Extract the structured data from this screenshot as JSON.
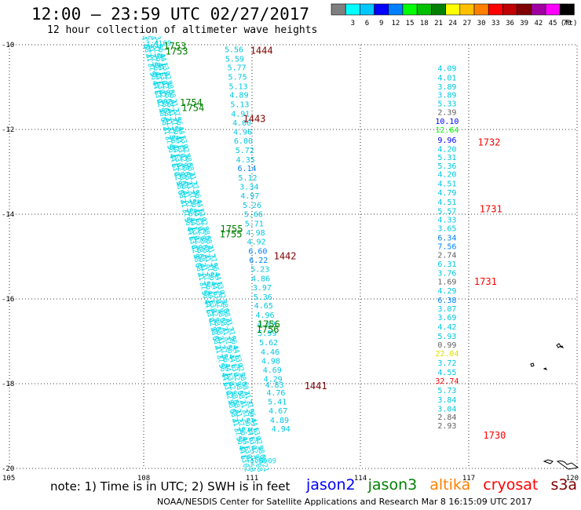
{
  "title": "12:00 – 23:59 UTC 02/27/2017",
  "subtitle": "12 hour collection of altimeter wave heights",
  "colorbar": {
    "unit": "(ft)",
    "bins": [
      {
        "label": "",
        "color": "#7f7f7f"
      },
      {
        "label": "3",
        "color": "#00ffff"
      },
      {
        "label": "6",
        "color": "#00c8ff"
      },
      {
        "label": "9",
        "color": "#0000ff"
      },
      {
        "label": "12",
        "color": "#0080ff"
      },
      {
        "label": "15",
        "color": "#00ff00"
      },
      {
        "label": "18",
        "color": "#00c000"
      },
      {
        "label": "21",
        "color": "#008000"
      },
      {
        "label": "24",
        "color": "#ffff00"
      },
      {
        "label": "27",
        "color": "#ffc000"
      },
      {
        "label": "30",
        "color": "#ff8000"
      },
      {
        "label": "33",
        "color": "#ff0000"
      },
      {
        "label": "36",
        "color": "#c00000"
      },
      {
        "label": "39",
        "color": "#800000"
      },
      {
        "label": "42",
        "color": "#a000a0"
      },
      {
        "label": "45",
        "color": "#ff00ff"
      },
      {
        "label": "70",
        "color": "#000000"
      }
    ]
  },
  "axes": {
    "lon_labels": [
      "105",
      "108",
      "111",
      "114",
      "117",
      "120"
    ],
    "lat_labels": [
      "-10",
      "-12",
      "-14",
      "-16",
      "-18",
      "-20"
    ]
  },
  "tracks": {
    "east_track": {
      "color_main": "#00c8e0",
      "values": [
        {
          "v": "4.09",
          "lat": -10.55,
          "c": "#00c8e0"
        },
        {
          "v": "4.01",
          "lat": -10.77,
          "c": "#00c8e0"
        },
        {
          "v": "3.89",
          "lat": -10.98,
          "c": "#00c8e0"
        },
        {
          "v": "3.89",
          "lat": -11.18,
          "c": "#00c8e0"
        },
        {
          "v": "5.33",
          "lat": -11.38,
          "c": "#00c8e0"
        },
        {
          "v": "2.39",
          "lat": -11.58,
          "c": "#606060"
        },
        {
          "v": "10.10",
          "lat": -11.8,
          "c": "#0000ff"
        },
        {
          "v": "12.64",
          "lat": -12.0,
          "c": "#00ff00"
        },
        {
          "v": "9.96",
          "lat": -12.24,
          "c": "#0000ff"
        },
        {
          "v": "4.20",
          "lat": -12.45,
          "c": "#00c8e0"
        },
        {
          "v": "5.31",
          "lat": -12.65,
          "c": "#00c8e0"
        },
        {
          "v": "5.36",
          "lat": -12.85,
          "c": "#00c8e0"
        },
        {
          "v": "4.20",
          "lat": -13.05,
          "c": "#00c8e0"
        },
        {
          "v": "4.51",
          "lat": -13.27,
          "c": "#00c8e0"
        },
        {
          "v": "4.79",
          "lat": -13.48,
          "c": "#00c8e0"
        },
        {
          "v": "4.51",
          "lat": -13.7,
          "c": "#00c8e0"
        },
        {
          "v": "5.57",
          "lat": -13.92,
          "c": "#00c8e0"
        },
        {
          "v": "4.33",
          "lat": -14.12,
          "c": "#00c8e0"
        },
        {
          "v": "3.65",
          "lat": -14.32,
          "c": "#00c8e0"
        },
        {
          "v": "6.34",
          "lat": -14.55,
          "c": "#0080ff"
        },
        {
          "v": "7.56",
          "lat": -14.75,
          "c": "#0080ff"
        },
        {
          "v": "2.74",
          "lat": -14.95,
          "c": "#606060"
        },
        {
          "v": "6.31",
          "lat": -15.17,
          "c": "#00c8e0"
        },
        {
          "v": "3.76",
          "lat": -15.38,
          "c": "#00c8e0"
        },
        {
          "v": "1.69",
          "lat": -15.58,
          "c": "#606060"
        },
        {
          "v": "4.29",
          "lat": -15.8,
          "c": "#00c8e0"
        },
        {
          "v": "6.38",
          "lat": -16.02,
          "c": "#0080ff"
        },
        {
          "v": "3.07",
          "lat": -16.22,
          "c": "#00c8e0"
        },
        {
          "v": "3.69",
          "lat": -16.43,
          "c": "#00c8e0"
        },
        {
          "v": "4.42",
          "lat": -16.65,
          "c": "#00c8e0"
        },
        {
          "v": "5.93",
          "lat": -16.87,
          "c": "#00c8e0"
        },
        {
          "v": "0.99",
          "lat": -17.07,
          "c": "#606060"
        },
        {
          "v": "22.04",
          "lat": -17.28,
          "c": "#e0e000"
        },
        {
          "v": "3.72",
          "lat": -17.5,
          "c": "#00c8e0"
        },
        {
          "v": "4.55",
          "lat": -17.72,
          "c": "#00c8e0"
        },
        {
          "v": "32.74",
          "lat": -17.93,
          "c": "#ff0000"
        },
        {
          "v": "5.73",
          "lat": -18.15,
          "c": "#00c8e0"
        },
        {
          "v": "3.84",
          "lat": -18.37,
          "c": "#00c8e0"
        },
        {
          "v": "3.04",
          "lat": -18.58,
          "c": "#00c8e0"
        },
        {
          "v": "2.84",
          "lat": -18.78,
          "c": "#606060"
        },
        {
          "v": "2.93",
          "lat": -18.98,
          "c": "#606060"
        }
      ]
    },
    "middle_track": {
      "values": [
        {
          "v": "5.56",
          "lon": 110.5,
          "lat": -10.1
        },
        {
          "v": "5.59",
          "lon": 110.52,
          "lat": -10.32
        },
        {
          "v": "5.77",
          "lon": 110.58,
          "lat": -10.53
        },
        {
          "v": "5.75",
          "lon": 110.6,
          "lat": -10.75
        },
        {
          "v": "5.13",
          "lon": 110.62,
          "lat": -10.97
        },
        {
          "v": "4.89",
          "lon": 110.64,
          "lat": -11.18
        },
        {
          "v": "5.13",
          "lon": 110.66,
          "lat": -11.4
        },
        {
          "v": "4.91",
          "lon": 110.68,
          "lat": -11.62
        },
        {
          "v": "4.00",
          "lon": 110.72,
          "lat": -11.83
        },
        {
          "v": "4.96",
          "lon": 110.74,
          "lat": -12.05
        },
        {
          "v": "6.00",
          "lon": 110.76,
          "lat": -12.26
        },
        {
          "v": "5.72",
          "lon": 110.8,
          "lat": -12.48
        },
        {
          "v": "4.35",
          "lon": 110.82,
          "lat": -12.7
        },
        {
          "v": "6.14",
          "lon": 110.86,
          "lat": -12.91
        },
        {
          "v": "5.12",
          "lon": 110.88,
          "lat": -13.13
        },
        {
          "v": "3.34",
          "lon": 110.92,
          "lat": -13.34
        },
        {
          "v": "4.97",
          "lon": 110.94,
          "lat": -13.56
        },
        {
          "v": "5.26",
          "lon": 111.0,
          "lat": -13.78
        },
        {
          "v": "5.66",
          "lon": 111.04,
          "lat": -13.99
        },
        {
          "v": "5.71",
          "lon": 111.06,
          "lat": -14.21
        },
        {
          "v": "4.98",
          "lon": 111.1,
          "lat": -14.43
        },
        {
          "v": "4.92",
          "lon": 111.12,
          "lat": -14.64
        },
        {
          "v": "6.60",
          "lon": 111.16,
          "lat": -14.86
        },
        {
          "v": "6.22",
          "lon": 111.18,
          "lat": -15.07
        },
        {
          "v": "5.23",
          "lon": 111.22,
          "lat": -15.29
        },
        {
          "v": "4.86",
          "lon": 111.24,
          "lat": -15.51
        },
        {
          "v": "3.97",
          "lon": 111.28,
          "lat": -15.72
        },
        {
          "v": "5.36",
          "lon": 111.3,
          "lat": -15.94
        },
        {
          "v": "4.65",
          "lon": 111.32,
          "lat": -16.15
        },
        {
          "v": "4.96",
          "lon": 111.36,
          "lat": -16.37
        },
        {
          "v": "4.82",
          "lon": 111.4,
          "lat": -16.59
        },
        {
          "v": "5.99",
          "lon": 111.42,
          "lat": -16.8
        },
        {
          "v": "5.62",
          "lon": 111.46,
          "lat": -17.02
        },
        {
          "v": "4.46",
          "lon": 111.5,
          "lat": -17.24
        },
        {
          "v": "4.98",
          "lon": 111.52,
          "lat": -17.45
        },
        {
          "v": "4.69",
          "lon": 111.56,
          "lat": -17.67
        },
        {
          "v": "4.29",
          "lon": 111.58,
          "lat": -17.88
        },
        {
          "v": "4.83",
          "lon": 111.62,
          "lat": -18.02
        },
        {
          "v": "4.76",
          "lon": 111.66,
          "lat": -18.2
        },
        {
          "v": "5.41",
          "lon": 111.7,
          "lat": -18.42
        },
        {
          "v": "4.67",
          "lon": 111.72,
          "lat": -18.63
        },
        {
          "v": "4.89",
          "lon": 111.76,
          "lat": -18.85
        },
        {
          "v": "4.94",
          "lon": 111.8,
          "lat": -19.06
        }
      ]
    },
    "west_tracks": {
      "top_values": [
        "3.41",
        "4.09"
      ],
      "bottom_values": [
        "5.59",
        "6.09"
      ]
    }
  },
  "time_labels": [
    {
      "text": "1444",
      "lon": 110.95,
      "lat": -10.12,
      "color": "#800000"
    },
    {
      "text": "1443",
      "lon": 110.75,
      "lat": -11.73,
      "color": "#800000"
    },
    {
      "text": "1442",
      "lon": 111.6,
      "lat": -14.97,
      "color": "#800000"
    },
    {
      "text": "1441",
      "lon": 112.45,
      "lat": -18.04,
      "color": "#800000"
    },
    {
      "text": "1732",
      "lon": 117.25,
      "lat": -12.29,
      "color": "#ff0000"
    },
    {
      "text": "1731",
      "lon": 117.3,
      "lat": -13.86,
      "color": "#ff0000"
    },
    {
      "text": "1731",
      "lon": 117.15,
      "lat": -15.57,
      "color": "#ff0000"
    },
    {
      "text": "1730",
      "lon": 117.4,
      "lat": -19.2,
      "color": "#ff0000"
    },
    {
      "text": "1753",
      "lon": 108.55,
      "lat": -10.02,
      "color": "#008000"
    },
    {
      "text": "1753",
      "lon": 108.6,
      "lat": -10.14,
      "color": "#008000"
    },
    {
      "text": "1754",
      "lon": 109.0,
      "lat": -11.35,
      "color": "#008000"
    },
    {
      "text": "1754",
      "lon": 109.05,
      "lat": -11.47,
      "color": "#008000"
    },
    {
      "text": "1755",
      "lon": 110.12,
      "lat": -14.33,
      "color": "#008000"
    },
    {
      "text": "1755",
      "lon": 110.1,
      "lat": -14.45,
      "color": "#008000"
    },
    {
      "text": "1756",
      "lon": 111.15,
      "lat": -16.58,
      "color": "#008000"
    },
    {
      "text": "1756",
      "lon": 111.12,
      "lat": -16.7,
      "color": "#008000"
    }
  ],
  "footer_note": "note: 1) Time is in UTC; 2) SWH is in feet",
  "legend": [
    {
      "name": "jason2",
      "color": "#0000ff"
    },
    {
      "name": "jason3",
      "color": "#008000"
    },
    {
      "name": "altika",
      "color": "#ff8000"
    },
    {
      "name": "cryosat",
      "color": "#ff0000"
    },
    {
      "name": "s3a",
      "color": "#800000"
    }
  ],
  "credit": "NOAA/NESDIS Center for Satellite Applications and Research   Mar  8 16:15:09 UTC 2017"
}
